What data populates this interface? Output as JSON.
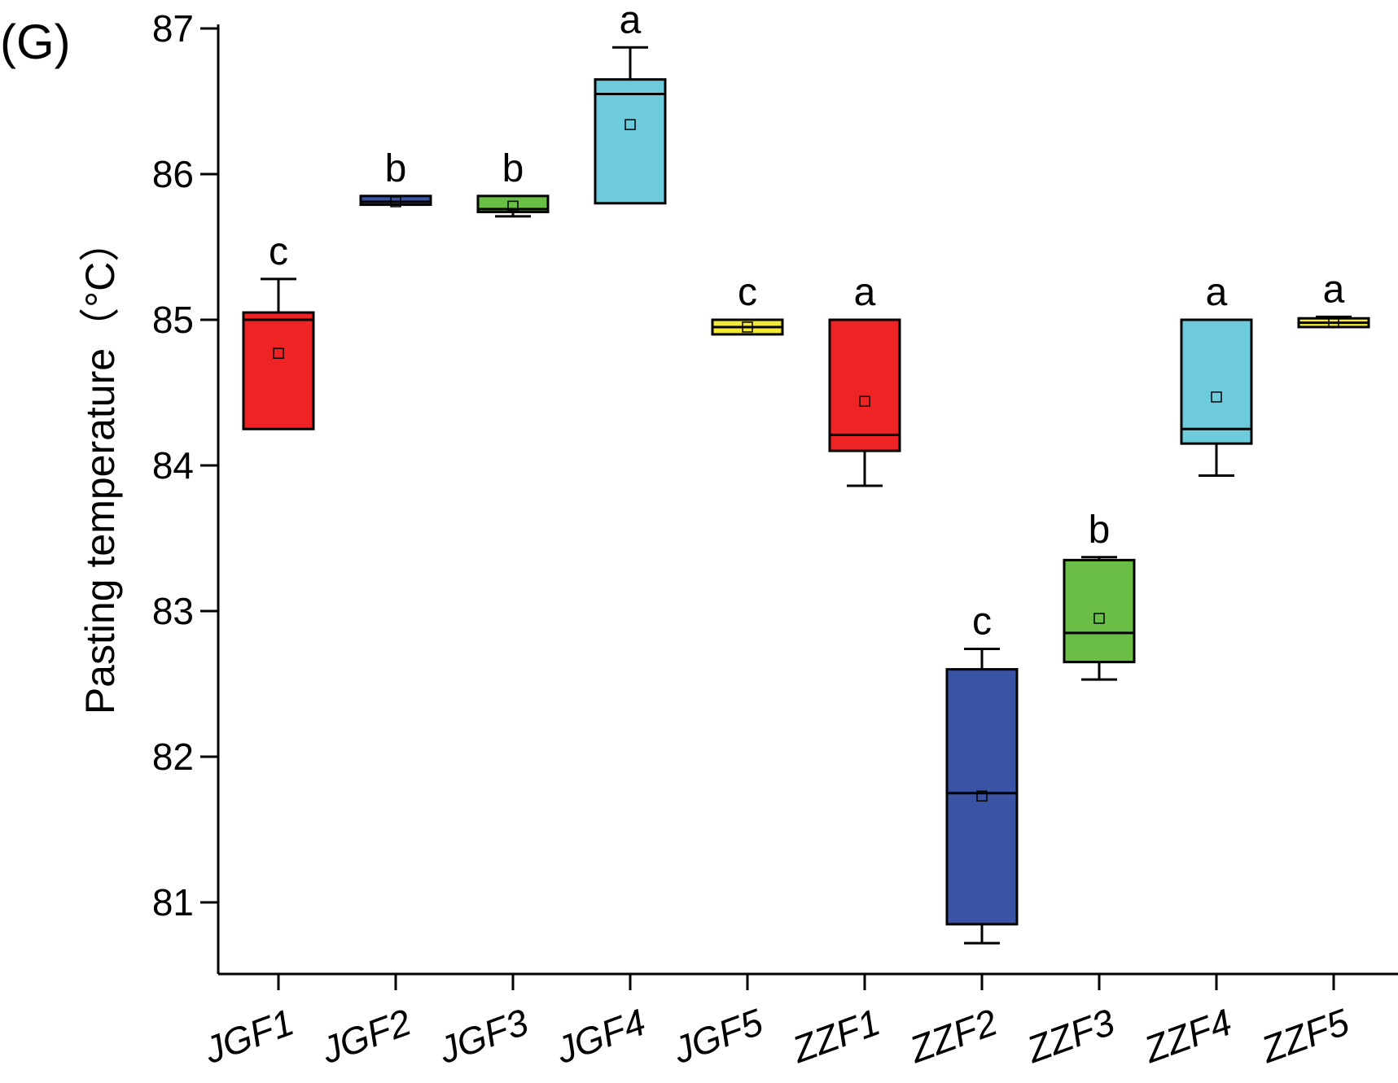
{
  "panel_label": "(G)",
  "chart_data": {
    "type": "box",
    "title": "",
    "xlabel": "",
    "ylabel": "Pasting temperature（°C）",
    "ylim": [
      80.5,
      87.0
    ],
    "yticks": [
      81,
      82,
      83,
      84,
      85,
      86,
      87
    ],
    "categories": [
      "JGF1",
      "JGF2",
      "JGF3",
      "JGF4",
      "JGF5",
      "ZZF1",
      "ZZF2",
      "ZZF3",
      "ZZF4",
      "ZZF5"
    ],
    "boxes": [
      {
        "name": "JGF1",
        "q1": 84.25,
        "median": 85.0,
        "q3": 85.05,
        "whisker_low": 84.25,
        "whisker_high": 85.28,
        "mean": 84.77,
        "letter": "c",
        "color": "#ee2424"
      },
      {
        "name": "JGF2",
        "q1": 85.79,
        "median": 85.81,
        "q3": 85.85,
        "whisker_low": 85.79,
        "whisker_high": 85.85,
        "mean": 85.81,
        "letter": "b",
        "color": "#3a53a4"
      },
      {
        "name": "JGF3",
        "q1": 85.74,
        "median": 85.76,
        "q3": 85.85,
        "whisker_low": 85.71,
        "whisker_high": 85.85,
        "mean": 85.78,
        "letter": "b",
        "color": "#6abd45"
      },
      {
        "name": "JGF4",
        "q1": 85.8,
        "median": 86.55,
        "q3": 86.65,
        "whisker_low": 85.8,
        "whisker_high": 86.87,
        "mean": 86.34,
        "letter": "a",
        "color": "#6dcbdb"
      },
      {
        "name": "JGF5",
        "q1": 84.9,
        "median": 84.95,
        "q3": 85.0,
        "whisker_low": 84.9,
        "whisker_high": 85.0,
        "mean": 84.95,
        "letter": "c",
        "color": "#f4ea36"
      },
      {
        "name": "ZZF1",
        "q1": 84.1,
        "median": 84.21,
        "q3": 85.0,
        "whisker_low": 83.86,
        "whisker_high": 85.0,
        "mean": 84.44,
        "letter": "a",
        "color": "#ee2424"
      },
      {
        "name": "ZZF2",
        "q1": 80.85,
        "median": 81.75,
        "q3": 82.6,
        "whisker_low": 80.72,
        "whisker_high": 82.74,
        "mean": 81.73,
        "letter": "c",
        "color": "#3a53a4"
      },
      {
        "name": "ZZF3",
        "q1": 82.65,
        "median": 82.85,
        "q3": 83.35,
        "whisker_low": 82.53,
        "whisker_high": 83.37,
        "mean": 82.95,
        "letter": "b",
        "color": "#6abd45"
      },
      {
        "name": "ZZF4",
        "q1": 84.15,
        "median": 84.25,
        "q3": 85.0,
        "whisker_low": 83.93,
        "whisker_high": 85.0,
        "mean": 84.47,
        "letter": "a",
        "color": "#6dcbdb"
      },
      {
        "name": "ZZF5",
        "q1": 84.95,
        "median": 84.98,
        "q3": 85.01,
        "whisker_low": 84.95,
        "whisker_high": 85.02,
        "mean": 84.98,
        "letter": "a",
        "color": "#f4ea36"
      }
    ]
  }
}
